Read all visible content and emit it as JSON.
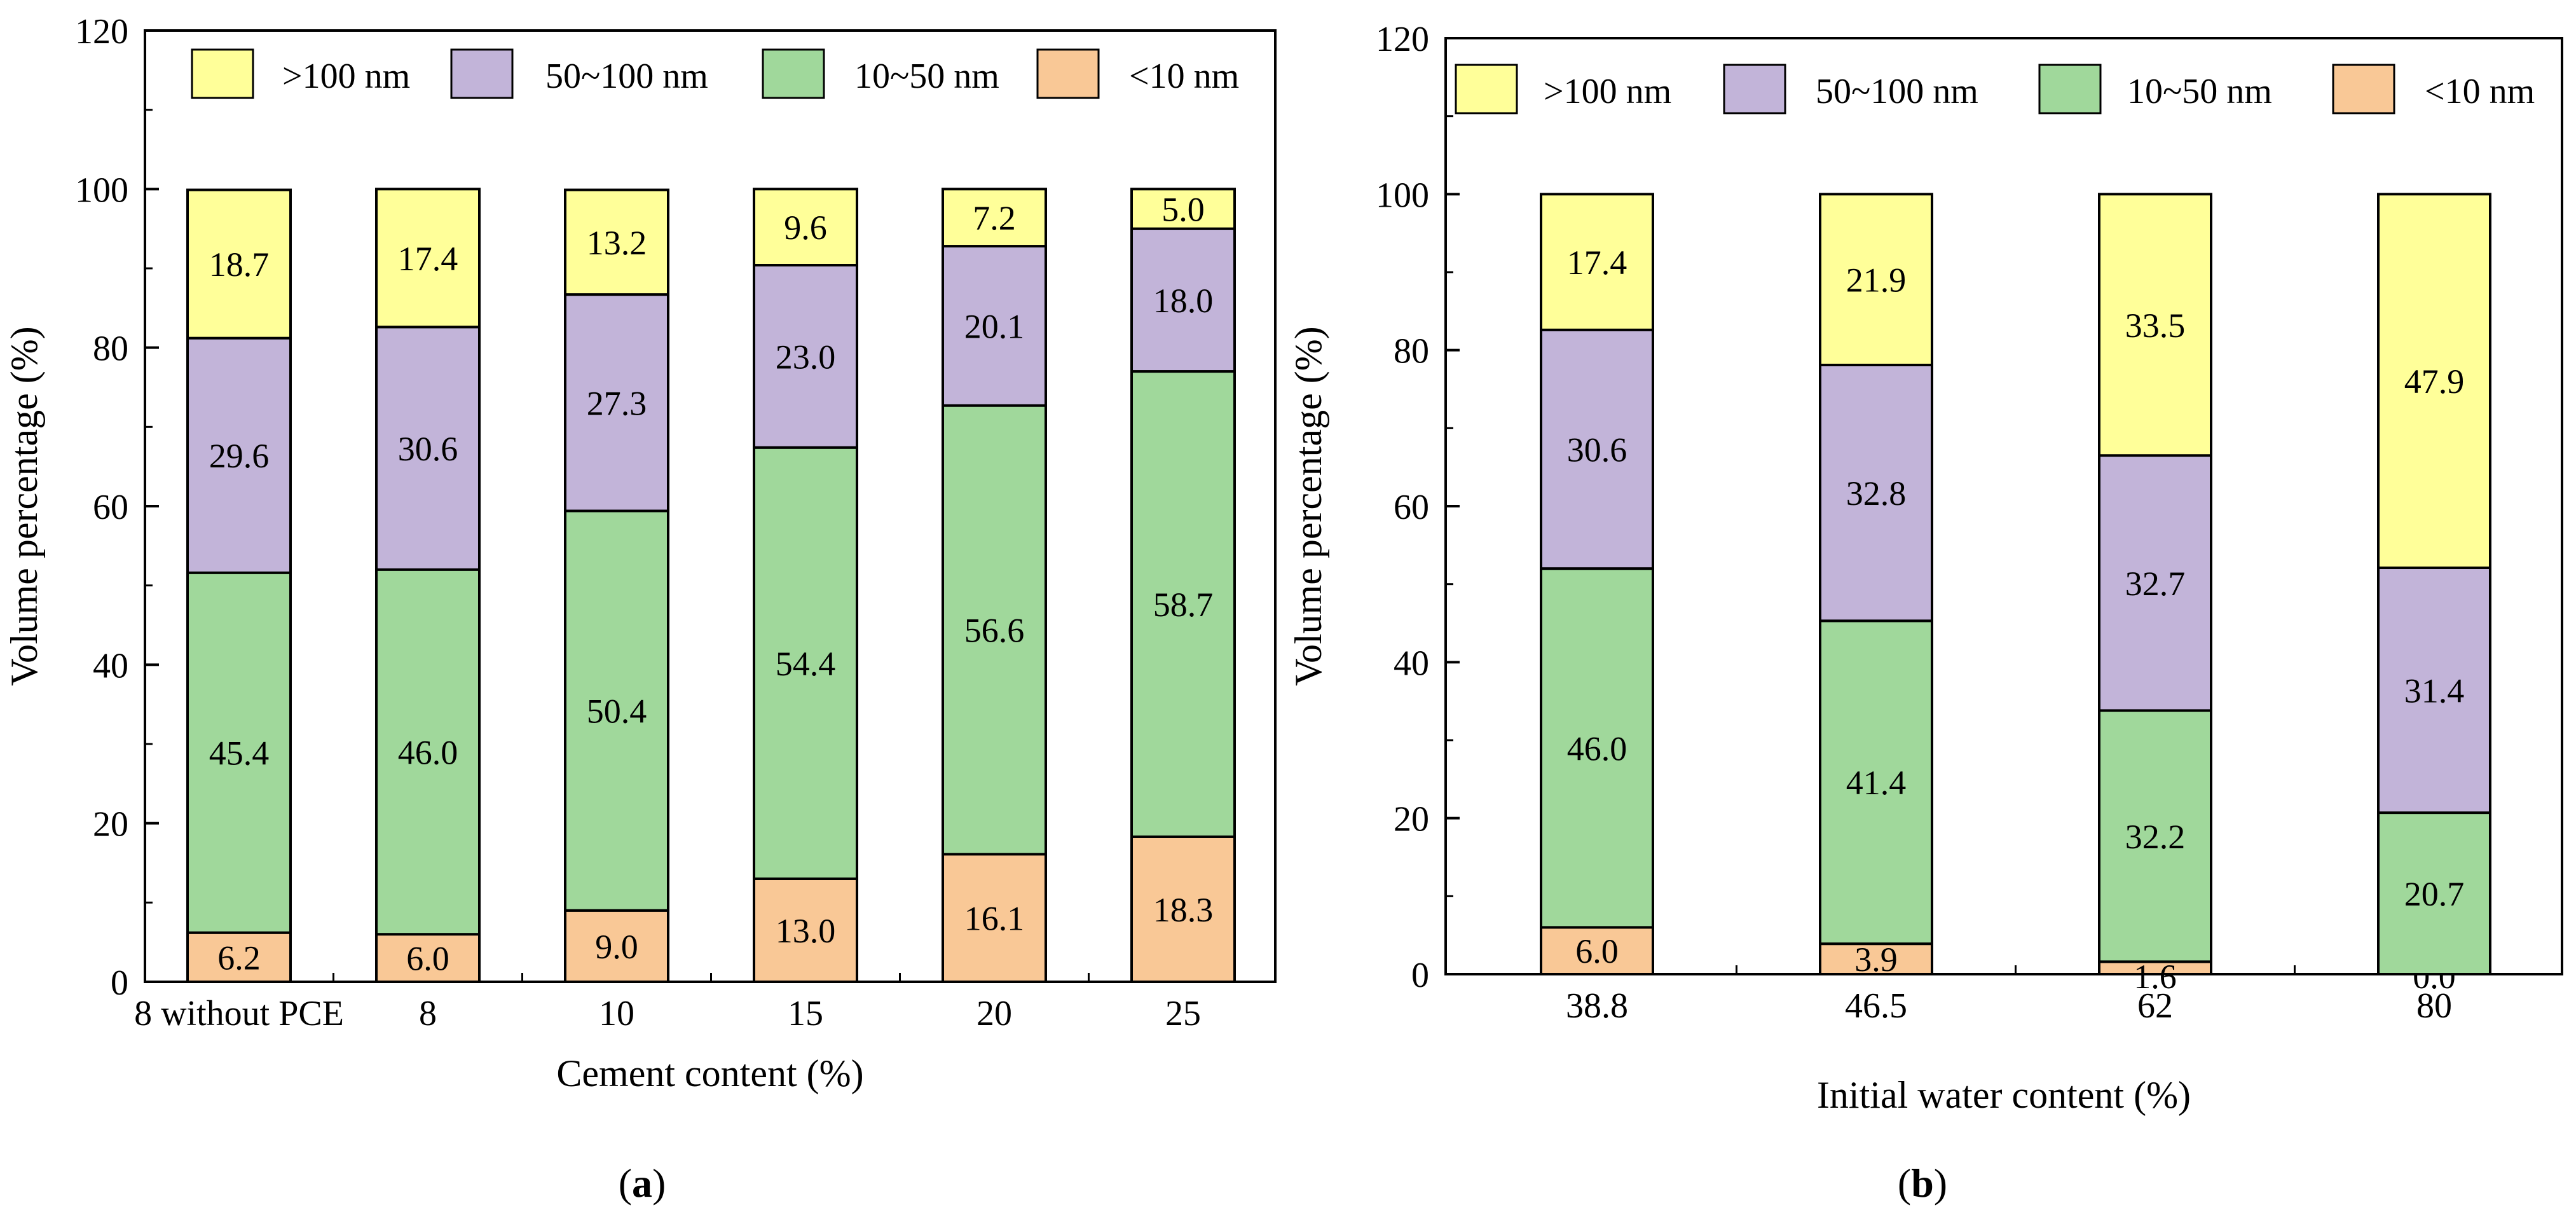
{
  "chart_data": [
    {
      "type": "bar",
      "stacked": true,
      "panel_label": "(a)",
      "panel_letter": "a",
      "xlabel": "Cement content (%)",
      "ylabel": "Volume percentage (%)",
      "ylim": [
        0,
        120
      ],
      "yticks": [
        0,
        20,
        40,
        60,
        80,
        100,
        120
      ],
      "legend_position": "top",
      "categories": [
        "8 without PCE",
        "8",
        "10",
        "15",
        "20",
        "25"
      ],
      "series": [
        {
          "name": "<10 nm",
          "color": "#f9c896",
          "values": [
            6.2,
            6.0,
            9.0,
            13.0,
            16.1,
            18.3
          ],
          "labels": [
            "6.2",
            "6.0",
            "9.0",
            "13.0",
            "16.1",
            "18.3"
          ]
        },
        {
          "name": "10~50 nm",
          "color": "#a0d89b",
          "values": [
            45.4,
            46.0,
            50.4,
            54.4,
            56.6,
            58.7
          ],
          "labels": [
            "45.4",
            "46.0",
            "50.4",
            "54.4",
            "56.6",
            "58.7"
          ]
        },
        {
          "name": "50~100 nm",
          "color": "#c2b4d9",
          "values": [
            29.6,
            30.6,
            27.3,
            23.0,
            20.1,
            18.0
          ],
          "labels": [
            "29.6",
            "30.6",
            "27.3",
            "23.0",
            "20.1",
            "18.0"
          ]
        },
        {
          "name": ">100 nm",
          "color": "#ffff99",
          "values": [
            18.7,
            17.4,
            13.2,
            9.6,
            7.2,
            5.0
          ],
          "labels": [
            "18.7",
            "17.4",
            "13.2",
            "9.6",
            "7.2",
            "5.0"
          ]
        }
      ]
    },
    {
      "type": "bar",
      "stacked": true,
      "panel_label": "(b)",
      "panel_letter": "b",
      "xlabel": "Initial water content (%)",
      "ylabel": "Volume percentage (%)",
      "ylim": [
        0,
        120
      ],
      "yticks": [
        0,
        20,
        40,
        60,
        80,
        100,
        120
      ],
      "legend_position": "top",
      "categories": [
        "38.8",
        "46.5",
        "62",
        "80"
      ],
      "series": [
        {
          "name": "<10 nm",
          "color": "#f9c896",
          "values": [
            6.0,
            3.9,
            1.6,
            0.0
          ],
          "labels": [
            "6.0",
            "3.9",
            "1.6",
            "0.0"
          ]
        },
        {
          "name": "10~50 nm",
          "color": "#a0d89b",
          "values": [
            46.0,
            41.4,
            32.2,
            20.7
          ],
          "labels": [
            "46.0",
            "41.4",
            "32.2",
            "20.7"
          ]
        },
        {
          "name": "50~100 nm",
          "color": "#c2b4d9",
          "values": [
            30.6,
            32.8,
            32.7,
            31.4
          ],
          "labels": [
            "30.6",
            "32.8",
            "32.7",
            "31.4"
          ]
        },
        {
          "name": ">100 nm",
          "color": "#ffff99",
          "values": [
            17.4,
            21.9,
            33.5,
            47.9
          ],
          "labels": [
            "17.4",
            "21.9",
            "33.5",
            "47.9"
          ]
        }
      ]
    }
  ]
}
